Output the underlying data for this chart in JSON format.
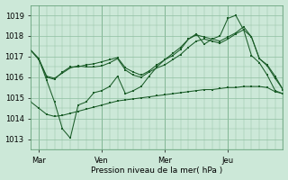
{
  "xlabel": "Pression niveau de la mer( hPa )",
  "bg_color": "#cce8d8",
  "line_color": "#1a5c28",
  "grid_color": "#8fbfa0",
  "ylim": [
    1012.5,
    1019.5
  ],
  "yticks": [
    1013,
    1014,
    1015,
    1016,
    1017,
    1018,
    1019
  ],
  "xlim": [
    0,
    32
  ],
  "day_positions": [
    1,
    9,
    17,
    25
  ],
  "day_labels": [
    "Mar",
    "Ven",
    "Mer",
    "Jeu"
  ],
  "vline_positions": [
    1,
    9,
    17,
    25
  ],
  "line1": [
    1017.3,
    1016.9,
    1016.05,
    1015.95,
    1016.2,
    1016.45,
    1016.55,
    1016.5,
    1016.5,
    1016.55,
    1016.7,
    1016.9,
    1016.35,
    1016.1,
    1016.0,
    1016.25,
    1016.45,
    1016.6,
    1016.85,
    1017.1,
    1017.45,
    1017.75,
    1017.85,
    1017.75,
    1017.65,
    1017.85,
    1018.1,
    1018.3,
    1017.95,
    1016.9,
    1016.55,
    1015.95,
    1015.4
  ],
  "line2": [
    1017.3,
    1016.85,
    1016.0,
    1015.9,
    1016.25,
    1016.5,
    1016.5,
    1016.6,
    1016.65,
    1016.75,
    1016.85,
    1016.95,
    1016.45,
    1016.25,
    1016.1,
    1016.3,
    1016.6,
    1016.85,
    1017.15,
    1017.45,
    1017.85,
    1018.05,
    1017.95,
    1017.85,
    1017.75,
    1017.95,
    1018.15,
    1018.45,
    1017.95,
    1016.9,
    1016.6,
    1016.05,
    1015.4
  ],
  "line3": [
    1017.3,
    1016.9,
    1015.85,
    1014.8,
    1013.5,
    1013.05,
    1014.65,
    1014.8,
    1015.25,
    1015.35,
    1015.55,
    1016.05,
    1015.2,
    1015.35,
    1015.55,
    1016.05,
    1016.5,
    1016.85,
    1017.05,
    1017.35,
    1017.85,
    1018.1,
    1017.6,
    1017.85,
    1018.0,
    1018.85,
    1019.0,
    1018.3,
    1017.05,
    1016.7,
    1016.1,
    1015.35,
    1015.2
  ],
  "line4": [
    1014.8,
    1014.5,
    1014.2,
    1014.1,
    1014.15,
    1014.25,
    1014.35,
    1014.45,
    1014.55,
    1014.65,
    1014.75,
    1014.85,
    1014.9,
    1014.95,
    1015.0,
    1015.05,
    1015.1,
    1015.15,
    1015.2,
    1015.25,
    1015.3,
    1015.35,
    1015.4,
    1015.4,
    1015.45,
    1015.5,
    1015.5,
    1015.55,
    1015.55,
    1015.55,
    1015.5,
    1015.3,
    1015.2
  ]
}
